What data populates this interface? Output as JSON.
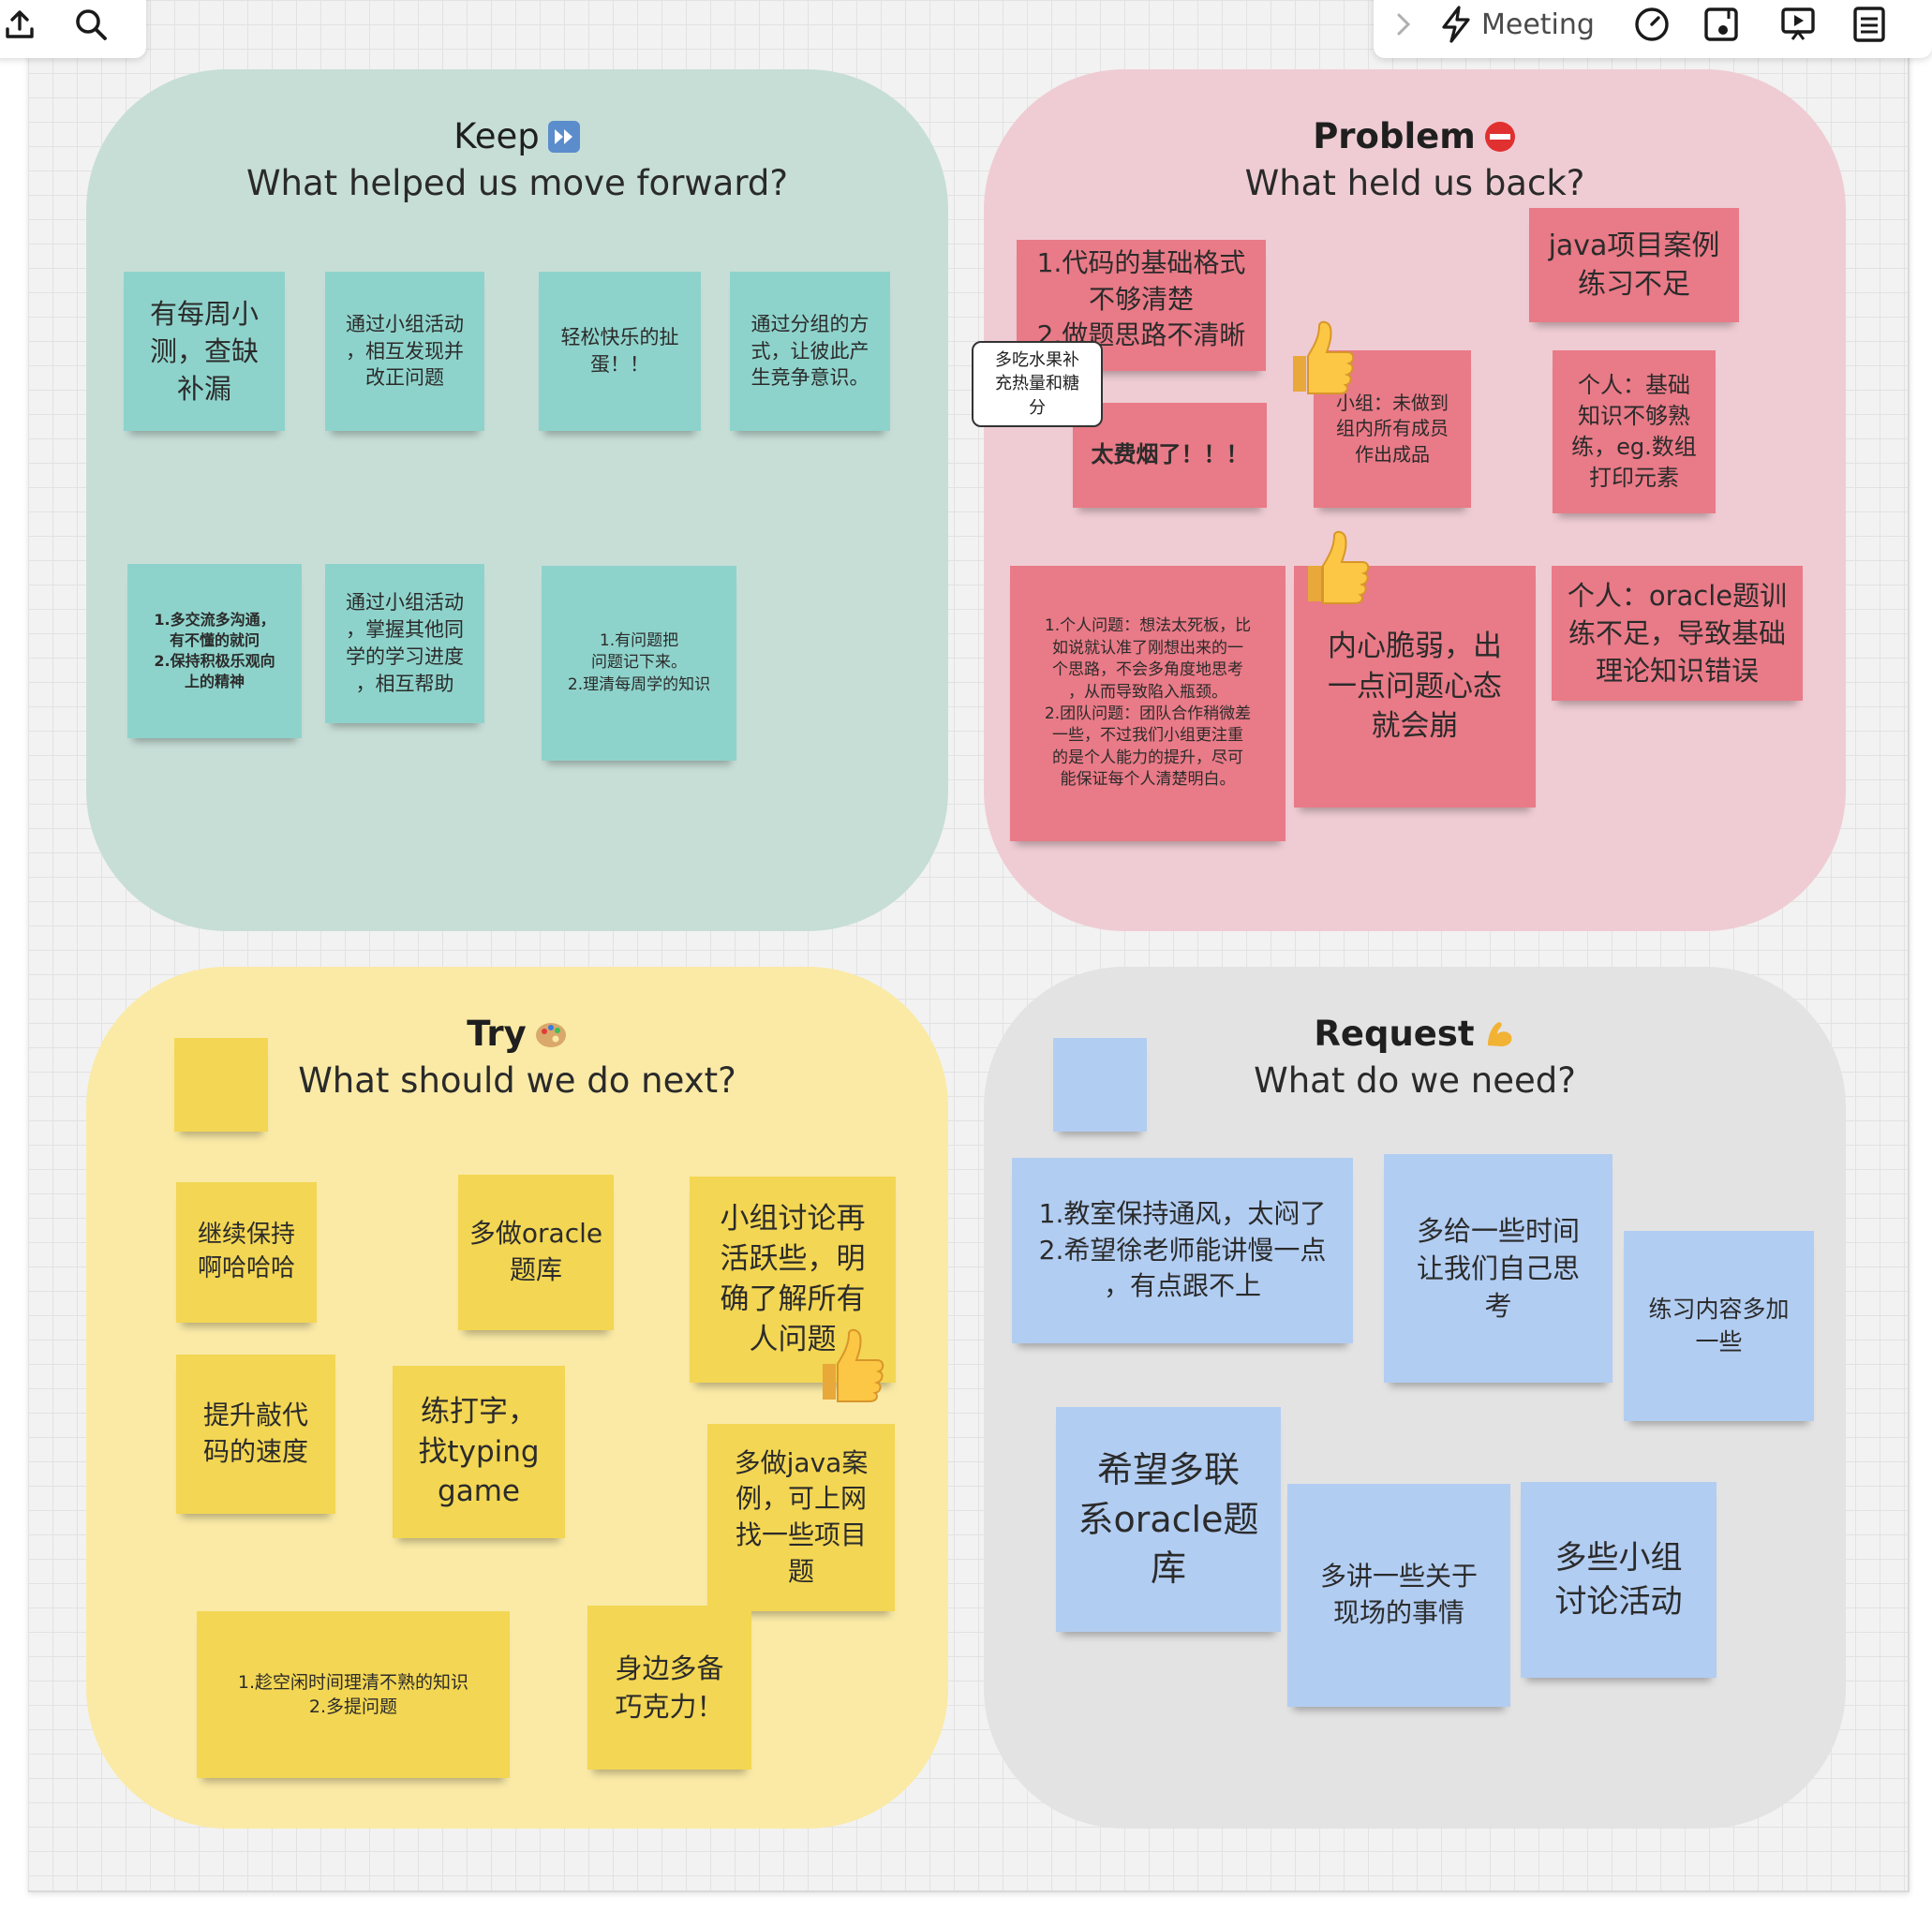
{
  "toolbar": {
    "meeting_label": "Meeting"
  },
  "quadrants": {
    "keep": {
      "title": "Keep",
      "subtitle": "What helped us move forward?",
      "color": "#c7ded7"
    },
    "problem": {
      "title": "Problem",
      "subtitle": "What held us back?",
      "color": "#efccd3"
    },
    "try": {
      "title": "Try",
      "subtitle": "What should we do next?",
      "color": "#faeaa6"
    },
    "request": {
      "title": "Request",
      "subtitle": "What do we need?",
      "color": "#e3e3e3"
    }
  },
  "notes": {
    "keep": [
      "有每周小\n测，查缺\n补漏",
      "通过小组活动\n，相互发现并\n改正问题",
      "轻松快乐的扯\n蛋！！",
      "通过分组的方\n式，让彼此产\n生竞争意识。",
      "1.多交流多沟通，\n有不懂的就问\n2.保持积极乐观向\n上的精神",
      "通过小组活动\n，掌握其他同\n学的学习进度\n，相互帮助",
      "1.有问题把\n问题记下来。\n2.理清每周学的知识"
    ],
    "problem": [
      "1.代码的基础格式\n不够清楚\n2.做题思路不清晰",
      "java项目案例\n练习不足",
      "小组：未做到\n组内所有成员\n作出成品",
      "个人：基础\n知识不够熟\n练，eg.数组\n打印元素",
      "太费烟了！！！",
      "1.个人问题：想法太死板，比\n如说就认准了刚想出来的一\n个思路，不会多角度地思考\n，从而导致陷入瓶颈。\n2.团队问题：团队合作稍微差\n一些，不过我们小组更注重\n的是个人能力的提升，尽可\n能保证每个人清楚明白。",
      "内心脆弱，出\n一点问题心态\n就会崩",
      "个人：oracle题训\n练不足，导致基础\n理论知识错误"
    ],
    "problem_comment": "多吃水果补\n充热量和糖\n分",
    "try": [
      "继续保持\n啊哈哈哈",
      "多做oracle\n题库",
      "小组讨论再\n活跃些，明\n确了解所有\n人问题",
      "提升敲代\n码的速度",
      "练打字，\n找typing\ngame",
      "多做java案\n例，可上网\n找一些项目\n题",
      "1.趁空闲时间理清不熟的知识\n2.多提问题",
      "身边多备\n巧克力！"
    ],
    "request": [
      "1.教室保持通风，太闷了\n2.希望徐老师能讲慢一点\n，有点跟不上",
      "多给一些时间\n让我们自己思\n考",
      "练习内容多加\n一些",
      "希望多联\n系oracle题\n库",
      "多讲一些关于\n现场的事情",
      "多些小组\n讨论活动"
    ]
  },
  "colors": {
    "teal_note": "#8ed3cb",
    "red_note": "#e97a87",
    "yellow_note": "#f3d653",
    "blue_note": "#b2cdf2"
  },
  "icons": [
    "upload-icon",
    "search-icon",
    "lightning-icon",
    "timer-icon",
    "frame-icon",
    "presentation-icon",
    "notes-icon",
    "thumbs-up-icon"
  ]
}
